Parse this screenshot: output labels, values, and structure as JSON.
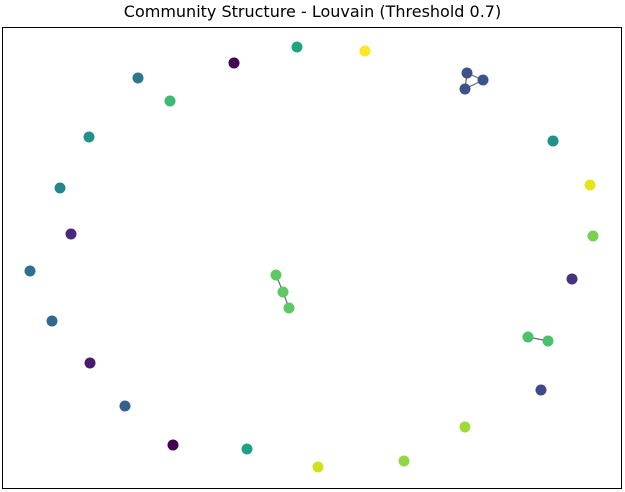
{
  "title": "Community Structure - Louvain (Threshold 0.7)",
  "colors": {
    "frame": "#000000",
    "edge": "#6b6b6b",
    "background": "#ffffff"
  },
  "nodes": [
    {
      "id": "n1",
      "color": "#21a386"
    },
    {
      "id": "n2",
      "color": "#fde725"
    },
    {
      "id": "n3",
      "color": "#440154"
    },
    {
      "id": "n4",
      "color": "#2a788e"
    },
    {
      "id": "n5",
      "color": "#3bbb75"
    },
    {
      "id": "n6",
      "color": "#3b528b"
    },
    {
      "id": "n7",
      "color": "#3b528b"
    },
    {
      "id": "n8",
      "color": "#3b528b"
    },
    {
      "id": "n9",
      "color": "#21918c"
    },
    {
      "id": "n10",
      "color": "#21918c"
    },
    {
      "id": "n11",
      "color": "#e5e419"
    },
    {
      "id": "n12",
      "color": "#23888e"
    },
    {
      "id": "n13",
      "color": "#7ad151"
    },
    {
      "id": "n14",
      "color": "#482878"
    },
    {
      "id": "n15",
      "color": "#46337e"
    },
    {
      "id": "n16",
      "color": "#2c728e"
    },
    {
      "id": "n17",
      "color": "#5ec962"
    },
    {
      "id": "n18",
      "color": "#5ec962"
    },
    {
      "id": "n19",
      "color": "#5ec962"
    },
    {
      "id": "n20",
      "color": "#31688e"
    },
    {
      "id": "n21",
      "color": "#4ac16d"
    },
    {
      "id": "n22",
      "color": "#4ac16d"
    },
    {
      "id": "n23",
      "color": "#481a6c"
    },
    {
      "id": "n24",
      "color": "#3e4a89"
    },
    {
      "id": "n25",
      "color": "#355f8d"
    },
    {
      "id": "n26",
      "color": "#a0da39"
    },
    {
      "id": "n27",
      "color": "#440154"
    },
    {
      "id": "n28",
      "color": "#1fa188"
    },
    {
      "id": "n29",
      "color": "#d0e11c"
    },
    {
      "id": "n30",
      "color": "#8fd744"
    }
  ],
  "edges": [
    [
      "n6",
      "n7"
    ],
    [
      "n6",
      "n8"
    ],
    [
      "n7",
      "n8"
    ],
    [
      "n17",
      "n18"
    ],
    [
      "n18",
      "n19"
    ],
    [
      "n21",
      "n22"
    ]
  ]
}
